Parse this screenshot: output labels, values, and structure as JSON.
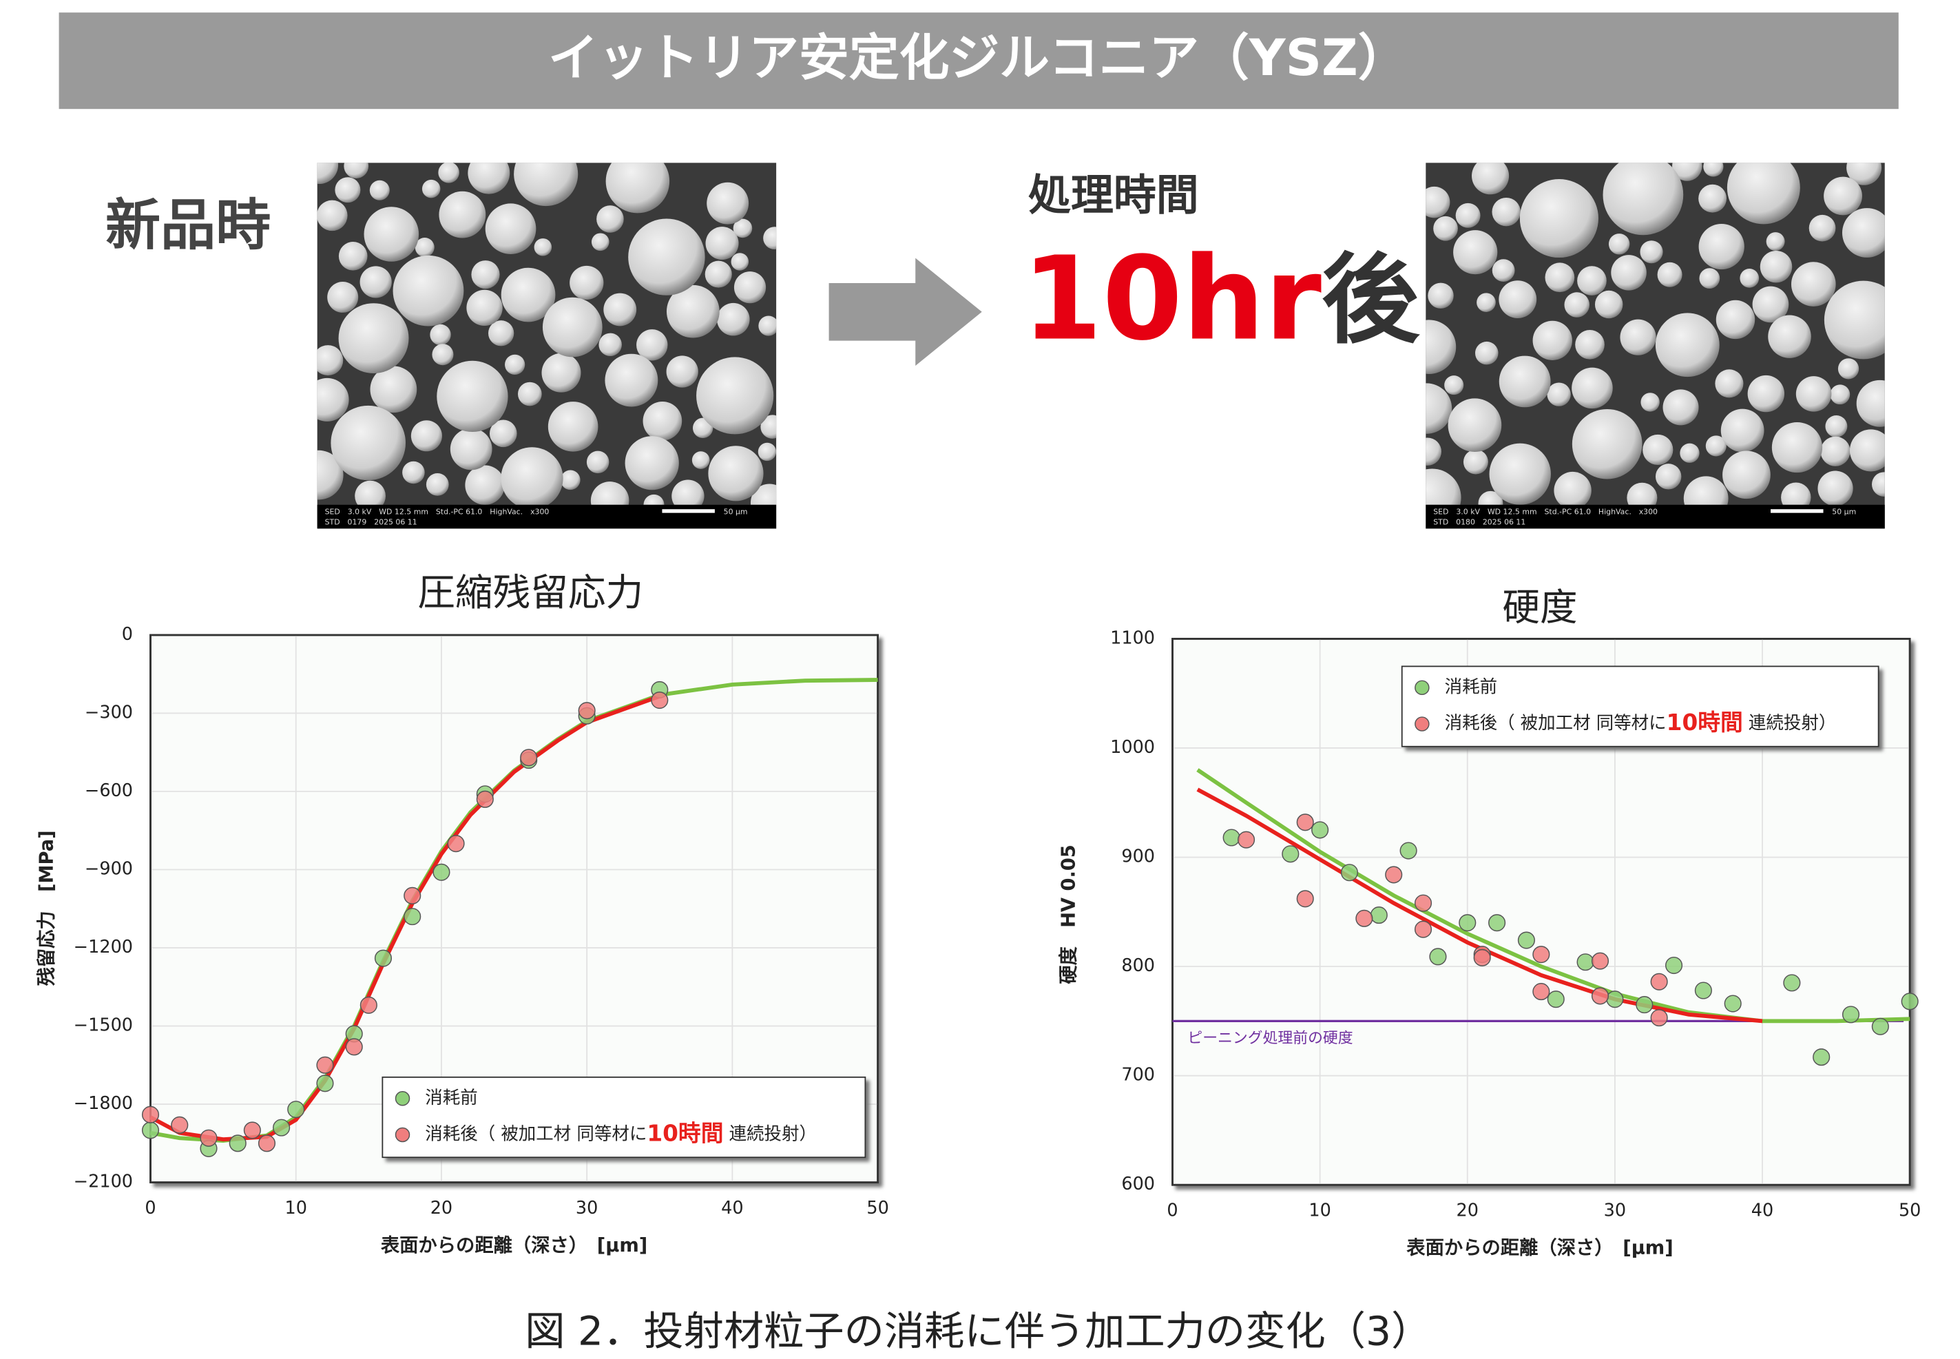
{
  "header": {
    "title": "イットリア安定化ジルコニア（YSZ）"
  },
  "before_label": "新品時",
  "after_label": {
    "line1": "処理時間",
    "time": "10hr",
    "suffix": "後"
  },
  "images": [
    {
      "info1": "SED　3.0 kV　WD 12.5 mm　Std.-PC 61.0　HighVac.　x300",
      "info2": "STD　0179　2025 06 11",
      "scale": "50 µm"
    },
    {
      "info1": "SED　3.0 kV　WD 12.5 mm　Std.-PC 61.0　HighVac.　x300",
      "info2": "STD　0180　2025 06 11",
      "scale": "50 µm"
    }
  ],
  "caption": "図 2．投射材粒子の消耗に伴う加工力の変化（3）",
  "chart_data": [
    {
      "type": "scatter",
      "title": "圧縮残留応力",
      "x_label": "表面からの距離（深さ）　[μm]",
      "y_label": "残留応力　[MPa]",
      "xlim": [
        0,
        50
      ],
      "xticks": [
        0,
        10,
        20,
        30,
        40,
        50
      ],
      "ylim": [
        -2100,
        0
      ],
      "yticks": [
        0,
        {
          "value": -300,
          "label": "−300"
        },
        {
          "value": -600,
          "label": "−600"
        },
        {
          "value": -900,
          "label": "−900"
        },
        {
          "value": -1200,
          "label": "−1200"
        },
        {
          "value": -1500,
          "label": "−1500"
        },
        {
          "value": -1800,
          "label": "−1800"
        },
        {
          "value": -2100,
          "label": "−2100"
        }
      ],
      "grid": true,
      "legend_emphasis": "10時間",
      "series": [
        {
          "mode": "line",
          "color": "#7cc242",
          "x": [
            0,
            2,
            5,
            8,
            10,
            12,
            14,
            16,
            18,
            20,
            22,
            25,
            28,
            30,
            35,
            40,
            45,
            50
          ],
          "values": [
            -1910,
            -1930,
            -1940,
            -1920,
            -1850,
            -1700,
            -1500,
            -1250,
            -1020,
            -830,
            -680,
            -520,
            -400,
            -330,
            -230,
            -190,
            -175,
            -172
          ]
        },
        {
          "mode": "line",
          "color": "#e8211d",
          "x": [
            0,
            2,
            5,
            8,
            10,
            12,
            14,
            16,
            18,
            20,
            22,
            25,
            28,
            30,
            35
          ],
          "values": [
            -1850,
            -1910,
            -1935,
            -1925,
            -1860,
            -1710,
            -1510,
            -1260,
            -1030,
            -840,
            -690,
            -525,
            -405,
            -335,
            -235
          ]
        },
        {
          "mode": "markers",
          "name": "消耗前",
          "color": "#8fd07a",
          "x": [
            0,
            4,
            6,
            9,
            10,
            12,
            14,
            16,
            18,
            20,
            23,
            26,
            30,
            35
          ],
          "values": [
            -1900,
            -1970,
            -1950,
            -1890,
            -1820,
            -1720,
            -1530,
            -1240,
            -1080,
            -910,
            -610,
            -480,
            -310,
            -210
          ]
        },
        {
          "mode": "markers",
          "name": "消耗後（ 被加工材 同等材に10時間 連続投射）",
          "color": "#f07e7e",
          "x": [
            0,
            2,
            4,
            7,
            8,
            12,
            14,
            15,
            18,
            21,
            23,
            26,
            30,
            35
          ],
          "values": [
            -1840,
            -1880,
            -1930,
            -1900,
            -1950,
            -1650,
            -1580,
            -1420,
            -1000,
            -800,
            -630,
            -470,
            -290,
            -250
          ]
        }
      ]
    },
    {
      "type": "scatter",
      "title": "硬度",
      "x_label": "表面からの距離（深さ）　[μm]",
      "y_label": "硬度　HV 0.05",
      "xlim": [
        0,
        50
      ],
      "xticks": [
        0,
        10,
        20,
        30,
        40,
        50
      ],
      "ylim": [
        600,
        1100
      ],
      "yticks": [
        600,
        700,
        800,
        900,
        1000,
        1100
      ],
      "grid": true,
      "legend_emphasis": "10時間",
      "reference": {
        "value": 750,
        "label": "ピーニング処理前の硬度",
        "color": "#7030a0"
      },
      "series": [
        {
          "mode": "line",
          "color": "#7cc242",
          "x": [
            1.7,
            5,
            10,
            15,
            20,
            25,
            30,
            35,
            40,
            45,
            50
          ],
          "values": [
            980,
            950,
            905,
            865,
            830,
            800,
            775,
            758,
            750,
            750,
            752
          ]
        },
        {
          "mode": "line",
          "color": "#e8211d",
          "x": [
            1.7,
            5,
            10,
            15,
            20,
            25,
            30,
            35,
            40
          ],
          "values": [
            962,
            938,
            898,
            858,
            822,
            792,
            770,
            756,
            750
          ]
        },
        {
          "mode": "markers",
          "name": "消耗前",
          "color": "#8fd07a",
          "x": [
            4,
            8,
            10,
            12,
            14,
            16,
            18,
            20,
            22,
            24,
            26,
            28,
            30,
            32,
            34,
            36,
            38,
            42,
            44,
            46,
            48,
            50
          ],
          "values": [
            918,
            903,
            925,
            886,
            847,
            906,
            809,
            840,
            840,
            824,
            770,
            804,
            770,
            765,
            801,
            778,
            766,
            785,
            717,
            756,
            745,
            768
          ]
        },
        {
          "mode": "markers",
          "name": "消耗後（ 被加工材 同等材に10時間 連続投射）",
          "color": "#f07e7e",
          "x": [
            5,
            9,
            9,
            13,
            15,
            17,
            17,
            21,
            21,
            25,
            25,
            29,
            29,
            33,
            33
          ],
          "values": [
            916,
            932,
            862,
            844,
            884,
            858,
            834,
            811,
            808,
            811,
            777,
            805,
            773,
            786,
            753
          ]
        }
      ]
    }
  ]
}
